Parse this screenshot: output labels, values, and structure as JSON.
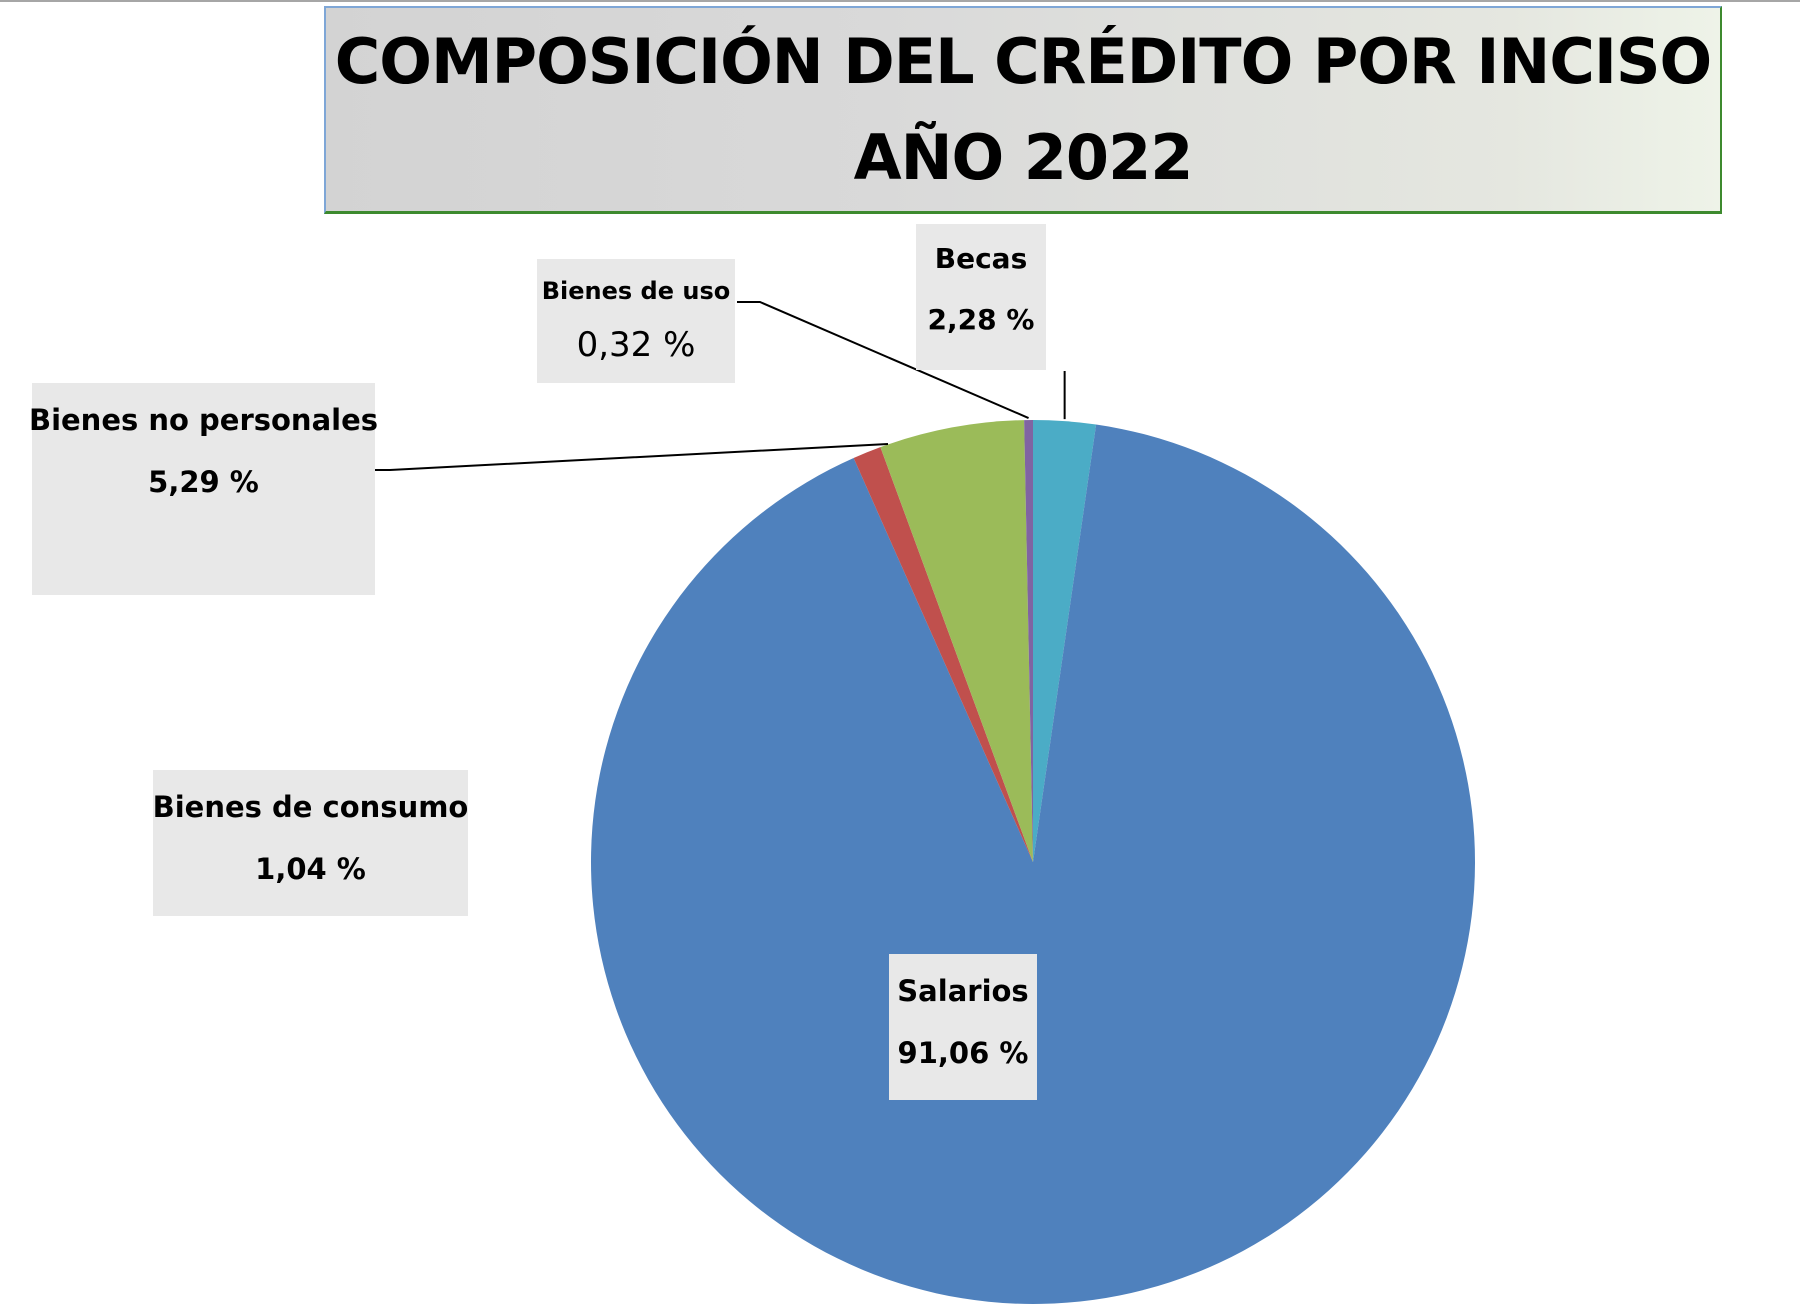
{
  "chart_data": {
    "type": "pie",
    "title": [
      "COMPOSICIÓN DEL CRÉDITO POR INCISO",
      "AÑO 2022"
    ],
    "slices": [
      {
        "name": "Becas",
        "value": 2.28,
        "label": "2,28 %",
        "color": "#4bacc6"
      },
      {
        "name": "Salarios",
        "value": 91.06,
        "label": "91,06 %",
        "color": "#4f81bd"
      },
      {
        "name": "Bienes de consumo",
        "value": 1.04,
        "label": "1,04 %",
        "color": "#c0504d"
      },
      {
        "name": "Bienes no personales",
        "value": 5.29,
        "label": "5,29 %",
        "color": "#9bbb59"
      },
      {
        "name": "Bienes de uso",
        "value": 0.32,
        "label": "0,32 %",
        "color": "#8064a2"
      }
    ],
    "start_angle_deg": 0,
    "direction": "clockwise"
  }
}
